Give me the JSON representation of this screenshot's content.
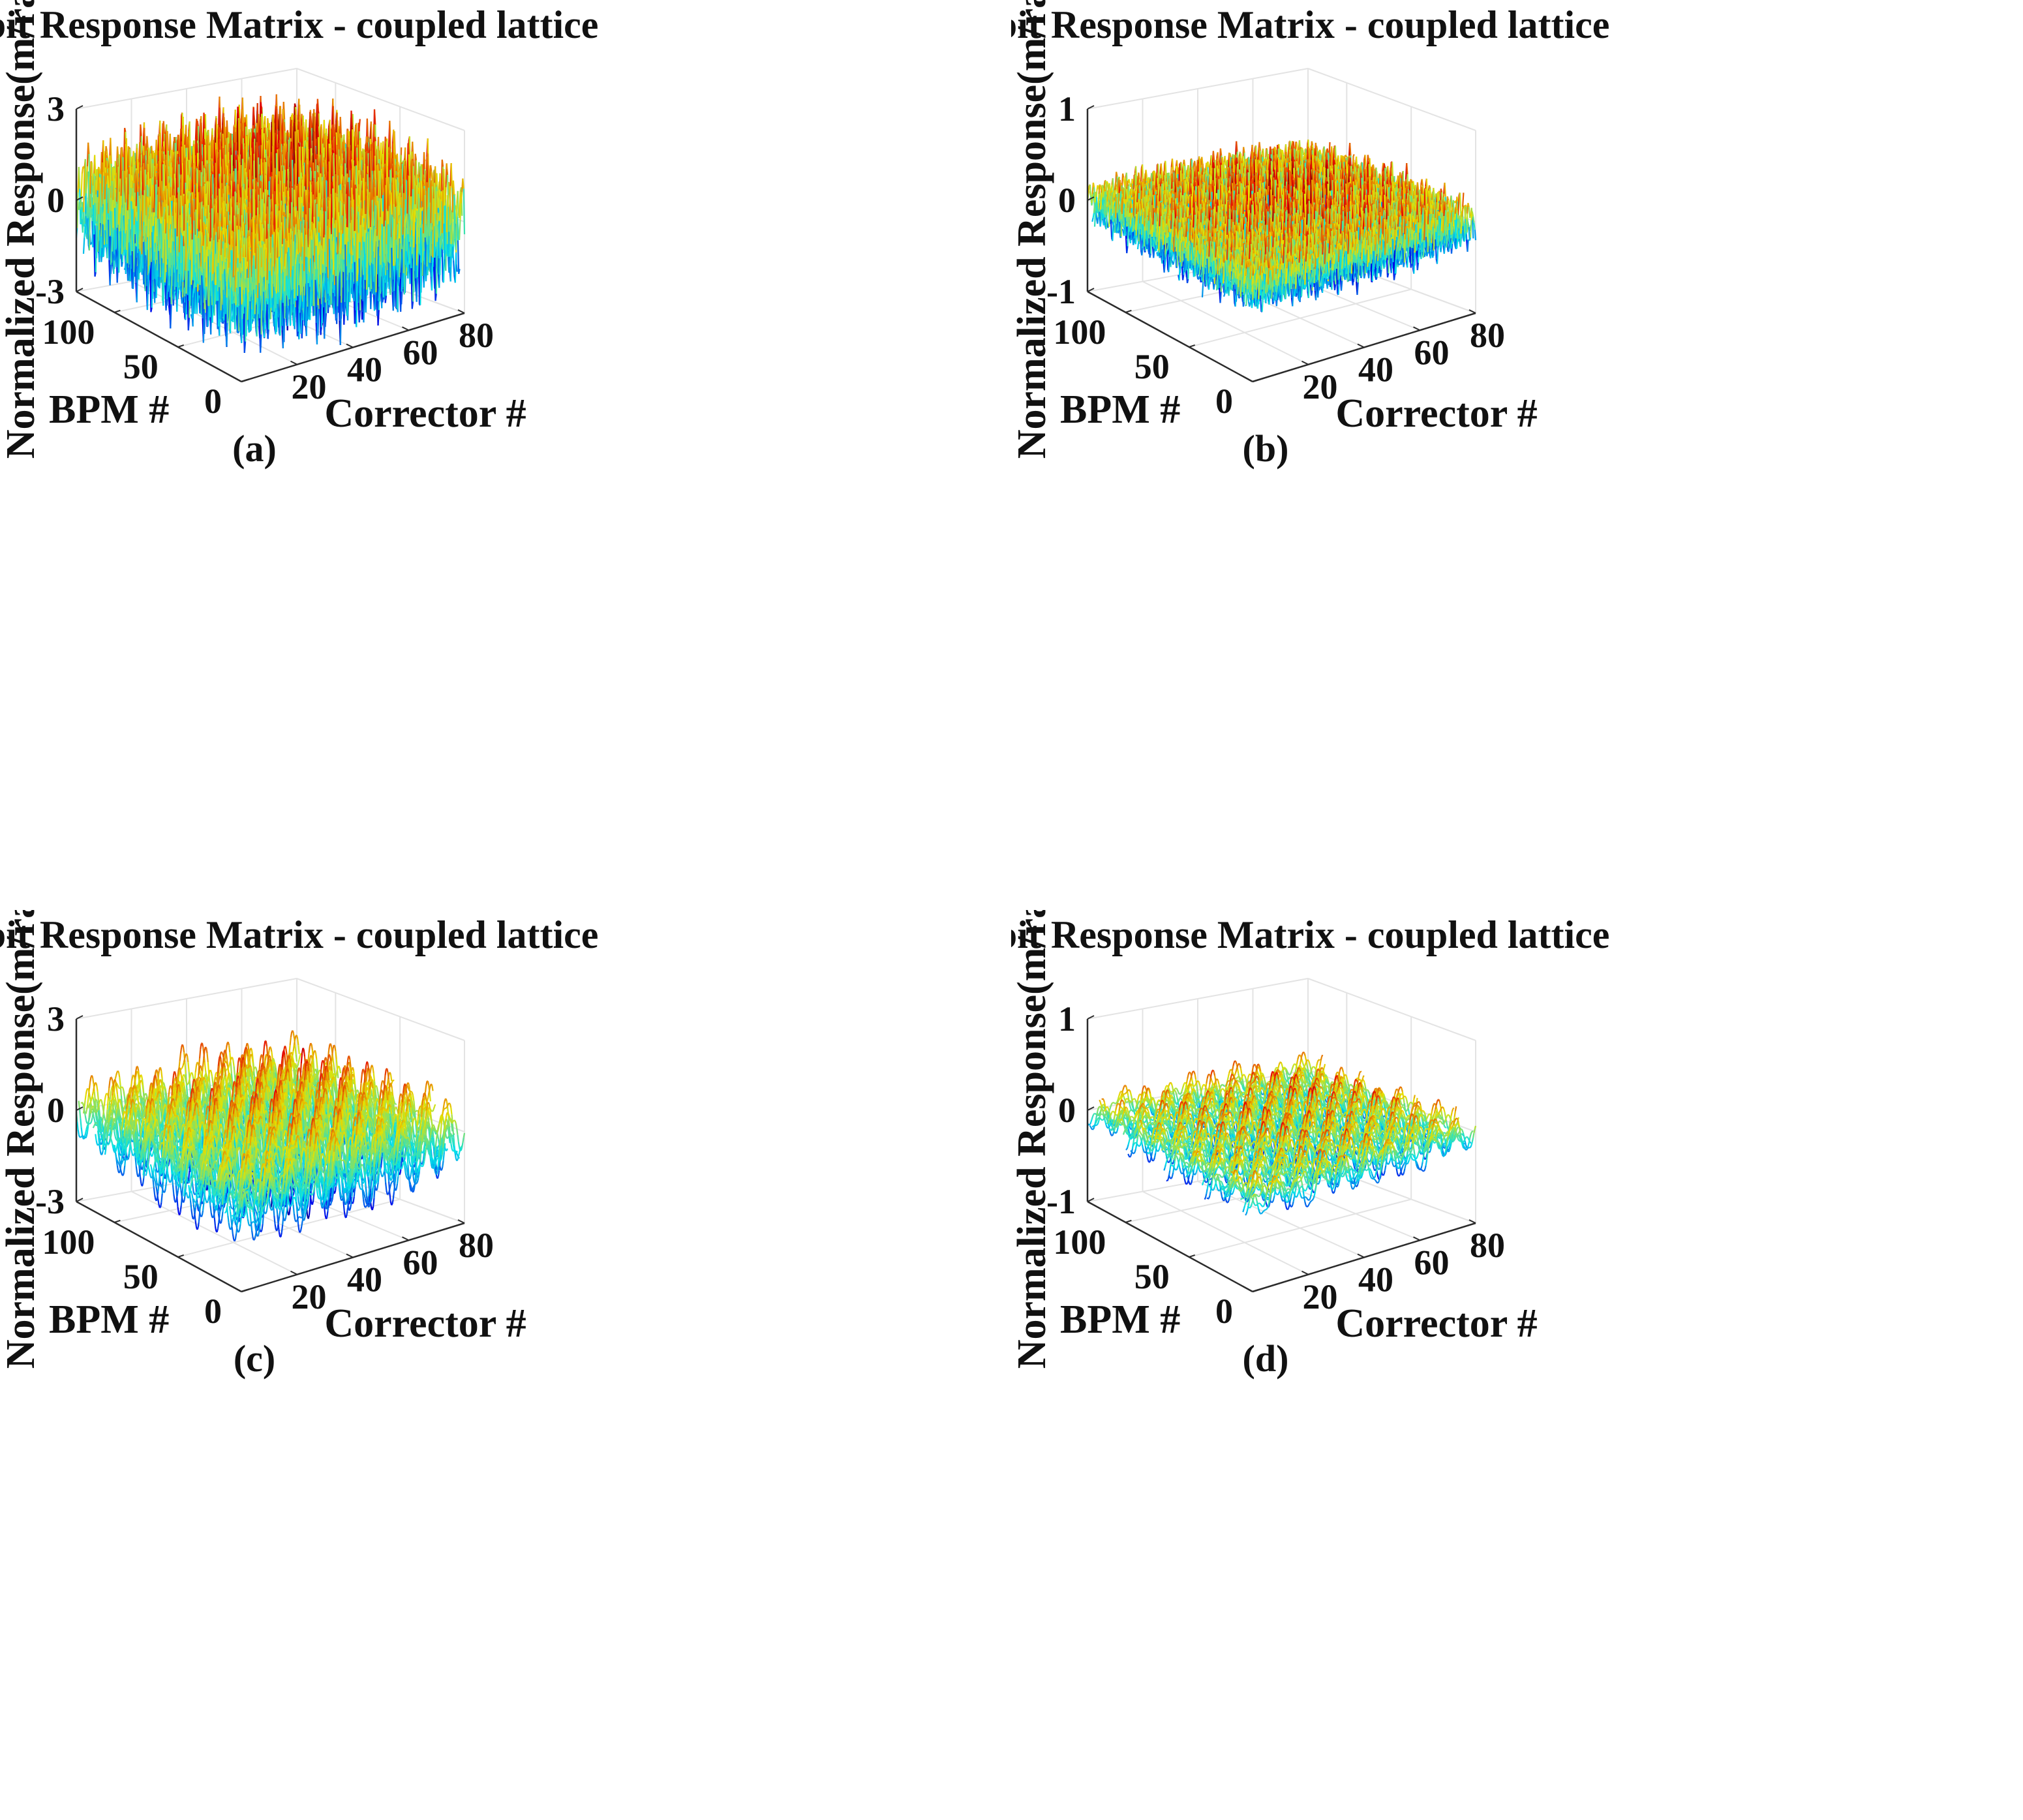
{
  "figure": {
    "colormap": "jet",
    "colors": {
      "grid": "#e3e3e3",
      "axis": "#2b2b2b",
      "text": "#111111",
      "surface_low": "#1a3fd8",
      "surface_mid": "#2fd7d0",
      "surface_high_mid": "#f2e21a",
      "surface_high": "#d2231a"
    }
  },
  "chart_data": [
    {
      "type": "surface",
      "style": "3d mesh (waterfall lines)",
      "caption": "(a)",
      "title": "Orbit Response Matrix - coupled lattice",
      "xlabel": "Corrector #",
      "ylabel": "BPM #",
      "zlabel": "Normalized Response(m/rad)",
      "x_ticks": [
        "20",
        "40",
        "60",
        "80"
      ],
      "y_ticks": [
        "0",
        "50",
        "100"
      ],
      "z_ticks": [
        "-3",
        "0",
        "3"
      ],
      "xlim": [
        0,
        80
      ],
      "ylim": [
        0,
        130
      ],
      "zlim": [
        -3,
        3
      ],
      "grid": true,
      "data_range": {
        "min": -3.4,
        "max": 2.6
      },
      "pattern": "dense irregular oscillations across both axes, large amplitude"
    },
    {
      "type": "surface",
      "style": "3d mesh (waterfall lines)",
      "caption": "(b)",
      "title": "Orbit Response Matrix - coupled lattice",
      "xlabel": "Corrector #",
      "ylabel": "BPM #",
      "zlabel": "Normalized Response(m/rad)",
      "x_ticks": [
        "20",
        "40",
        "60",
        "80"
      ],
      "y_ticks": [
        "0",
        "50",
        "100"
      ],
      "z_ticks": [
        "-1",
        "0",
        "1"
      ],
      "xlim": [
        0,
        80
      ],
      "ylim": [
        0,
        130
      ],
      "zlim": [
        -1,
        1
      ],
      "grid": true,
      "data_range": {
        "min": -0.5,
        "max": 0.35
      },
      "pattern": "dense irregular oscillations, small amplitude"
    },
    {
      "type": "surface",
      "style": "3d mesh (waterfall lines)",
      "caption": "(c)",
      "title": "Orbit Response Matrix - coupled lattice",
      "xlabel": "Corrector #",
      "ylabel": "BPM #",
      "zlabel": "Normalized Response(m/rad)",
      "x_ticks": [
        "20",
        "40",
        "60",
        "80"
      ],
      "y_ticks": [
        "0",
        "50",
        "100"
      ],
      "z_ticks": [
        "-3",
        "0",
        "3"
      ],
      "xlim": [
        0,
        80
      ],
      "ylim": [
        0,
        130
      ],
      "zlim": [
        -3,
        3
      ],
      "grid": true,
      "data_range": {
        "min": -2.7,
        "max": 1.3
      },
      "pattern": "smoother periodic oscillations, moderate amplitude"
    },
    {
      "type": "surface",
      "style": "3d mesh (waterfall lines)",
      "caption": "(d)",
      "title": "Orbit Response Matrix - coupled lattice",
      "xlabel": "Corrector #",
      "ylabel": "BPM #",
      "zlabel": "Normalized Response(m/rad)",
      "x_ticks": [
        "20",
        "40",
        "60",
        "80"
      ],
      "y_ticks": [
        "0",
        "50",
        "100"
      ],
      "z_ticks": [
        "-1",
        "0",
        "1"
      ],
      "xlim": [
        0,
        80
      ],
      "ylim": [
        0,
        130
      ],
      "zlim": [
        -1,
        1
      ],
      "grid": true,
      "data_range": {
        "min": -0.45,
        "max": 0.3
      },
      "pattern": "smooth periodic ridges, small amplitude"
    }
  ]
}
